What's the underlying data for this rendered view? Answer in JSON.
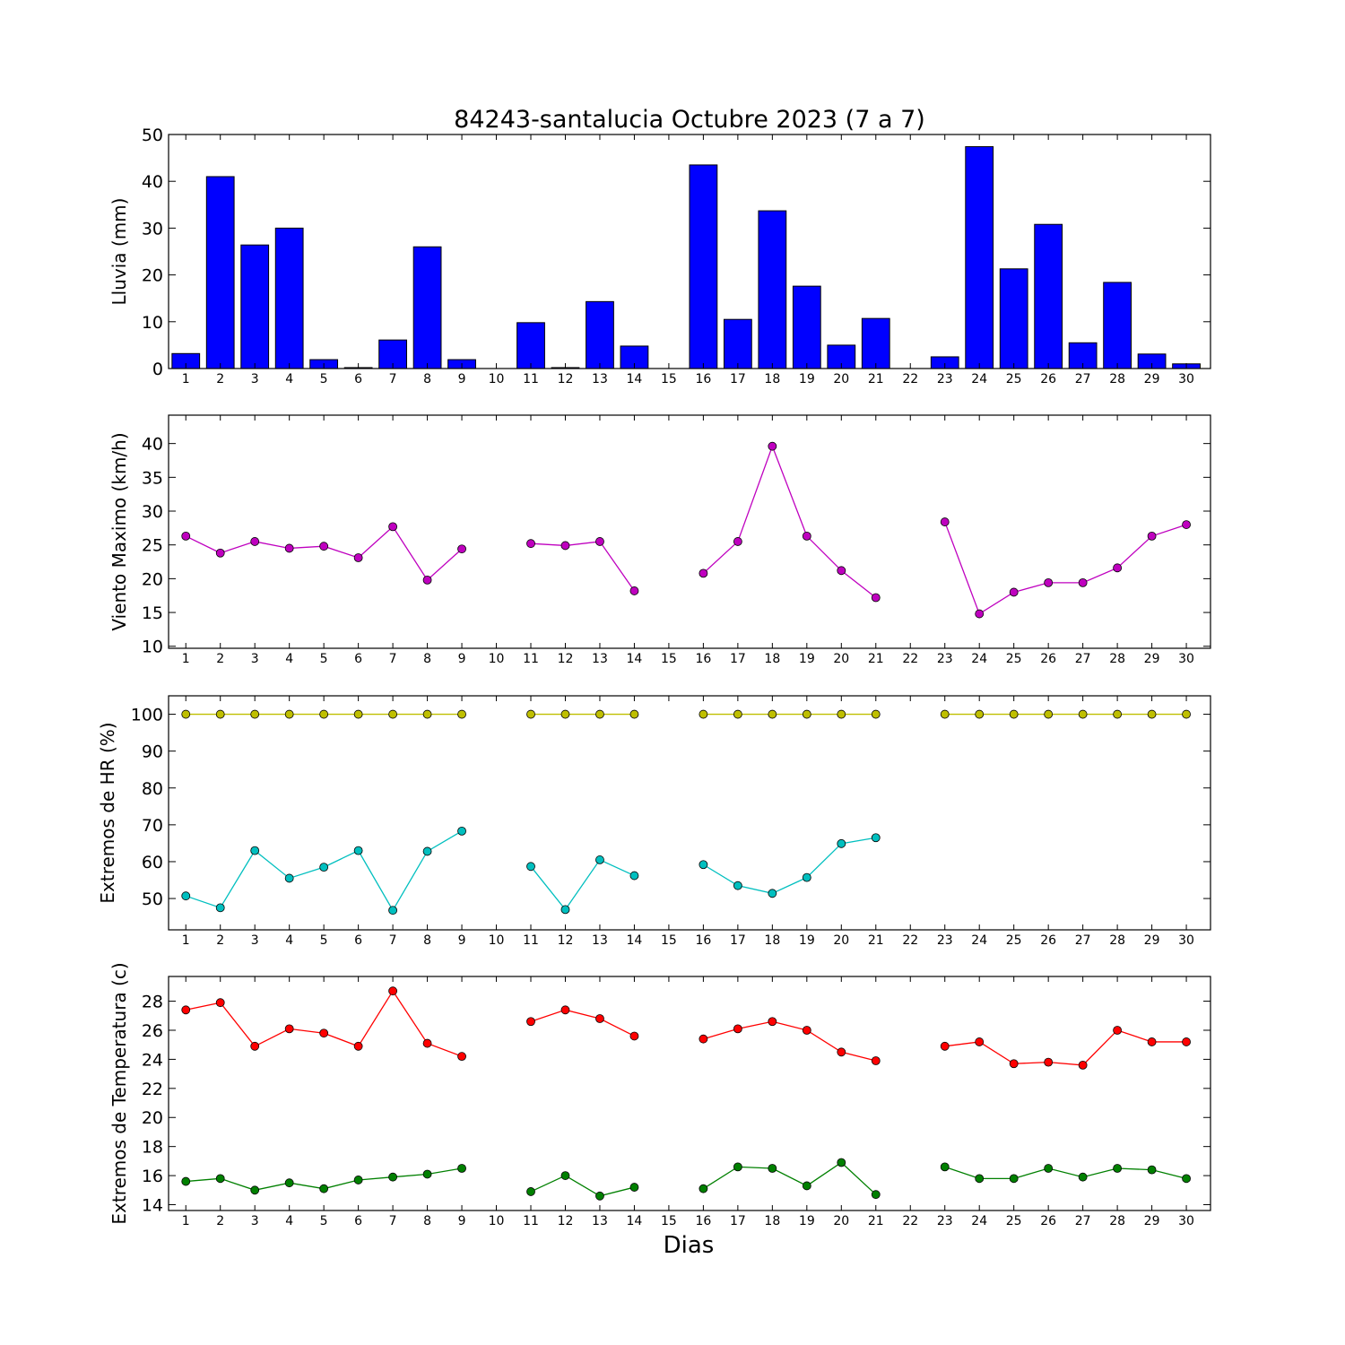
{
  "chart_data": [
    {
      "type": "bar",
      "title": "84243-santalucia Octubre 2023  (7 a 7)",
      "ylabel": "Lluvia (mm)",
      "xlabel": "",
      "categories": [
        "1",
        "2",
        "3",
        "4",
        "5",
        "6",
        "7",
        "8",
        "9",
        "10",
        "11",
        "12",
        "13",
        "14",
        "15",
        "16",
        "17",
        "18",
        "19",
        "20",
        "21",
        "22",
        "23",
        "24",
        "25",
        "26",
        "27",
        "28",
        "29",
        "30"
      ],
      "values": [
        3.2,
        41.0,
        26.4,
        30.0,
        1.9,
        0.2,
        6.1,
        26.0,
        1.9,
        0.0,
        9.8,
        0.2,
        14.3,
        4.8,
        0.0,
        43.5,
        10.5,
        33.7,
        17.6,
        5.0,
        10.7,
        0.0,
        2.5,
        47.4,
        21.3,
        30.8,
        5.5,
        18.4,
        3.1,
        1.0
      ],
      "ylim": [
        0,
        50
      ],
      "yticks": [
        0,
        10,
        20,
        30,
        40,
        50
      ],
      "color": "#0000ff"
    },
    {
      "type": "line",
      "ylabel": "Viento Maximo (km/h)",
      "x": [
        1,
        2,
        3,
        4,
        5,
        6,
        7,
        8,
        9,
        10,
        11,
        12,
        13,
        14,
        15,
        16,
        17,
        18,
        19,
        20,
        21,
        22,
        23,
        24,
        25,
        26,
        27,
        28,
        29,
        30
      ],
      "series": [
        {
          "values": [
            26.3,
            23.8,
            25.5,
            24.5,
            24.8,
            23.1,
            27.7,
            19.8,
            24.4,
            null,
            25.2,
            24.9,
            25.5,
            18.2,
            null,
            20.8,
            25.5,
            39.6,
            26.3,
            21.2,
            17.2,
            null,
            28.4,
            14.8,
            18.0,
            19.4,
            19.4,
            21.6,
            26.3,
            28.0
          ],
          "color": "#bf00bf"
        }
      ],
      "ylim": [
        9.7,
        44.2
      ],
      "yticks": [
        10,
        15,
        20,
        25,
        30,
        35,
        40
      ]
    },
    {
      "type": "line",
      "ylabel": "Extremos de HR (%)",
      "x": [
        1,
        2,
        3,
        4,
        5,
        6,
        7,
        8,
        9,
        10,
        11,
        12,
        13,
        14,
        15,
        16,
        17,
        18,
        19,
        20,
        21,
        22,
        23,
        24,
        25,
        26,
        27,
        28,
        29,
        30
      ],
      "series": [
        {
          "values": [
            100,
            100,
            100,
            100,
            100,
            100,
            100,
            100,
            100,
            null,
            100,
            100,
            100,
            100,
            null,
            100,
            100,
            100,
            100,
            100,
            100,
            null,
            100,
            100,
            100,
            100,
            100,
            100,
            100,
            100
          ],
          "color": "#bfbf00"
        },
        {
          "values": [
            50.7,
            47.5,
            63.0,
            55.5,
            58.5,
            63.0,
            46.8,
            62.8,
            68.3,
            null,
            58.7,
            47.0,
            60.5,
            56.2,
            null,
            59.2,
            53.5,
            51.4,
            55.7,
            64.9,
            66.5,
            null,
            null,
            null,
            null,
            null,
            null,
            null,
            null,
            null
          ],
          "color": "#00bfbf"
        }
      ],
      "ylim": [
        41.5,
        105
      ],
      "yticks": [
        50,
        60,
        70,
        80,
        90,
        100
      ]
    },
    {
      "type": "line",
      "ylabel": "Extremos de Temperatura (c)",
      "xlabel": "Dias",
      "x": [
        1,
        2,
        3,
        4,
        5,
        6,
        7,
        8,
        9,
        10,
        11,
        12,
        13,
        14,
        15,
        16,
        17,
        18,
        19,
        20,
        21,
        22,
        23,
        24,
        25,
        26,
        27,
        28,
        29,
        30
      ],
      "series": [
        {
          "values": [
            27.4,
            27.9,
            24.9,
            26.1,
            25.8,
            24.9,
            28.7,
            25.1,
            24.2,
            null,
            26.6,
            27.4,
            26.8,
            25.6,
            null,
            25.4,
            26.1,
            26.6,
            26.0,
            24.5,
            23.9,
            null,
            24.9,
            25.2,
            23.7,
            23.8,
            23.6,
            26.0,
            25.2,
            25.2
          ],
          "color": "#ff0000"
        },
        {
          "values": [
            15.6,
            15.8,
            15.0,
            15.5,
            15.1,
            15.7,
            15.9,
            16.1,
            16.5,
            null,
            14.9,
            16.0,
            14.6,
            15.2,
            null,
            15.1,
            16.6,
            16.5,
            15.3,
            16.9,
            14.7,
            null,
            16.6,
            15.8,
            15.8,
            16.5,
            15.9,
            16.5,
            16.4,
            15.8
          ],
          "color": "#008000"
        }
      ],
      "ylim": [
        13.6,
        29.7
      ],
      "yticks": [
        14,
        16,
        18,
        20,
        22,
        24,
        26,
        28
      ]
    }
  ]
}
